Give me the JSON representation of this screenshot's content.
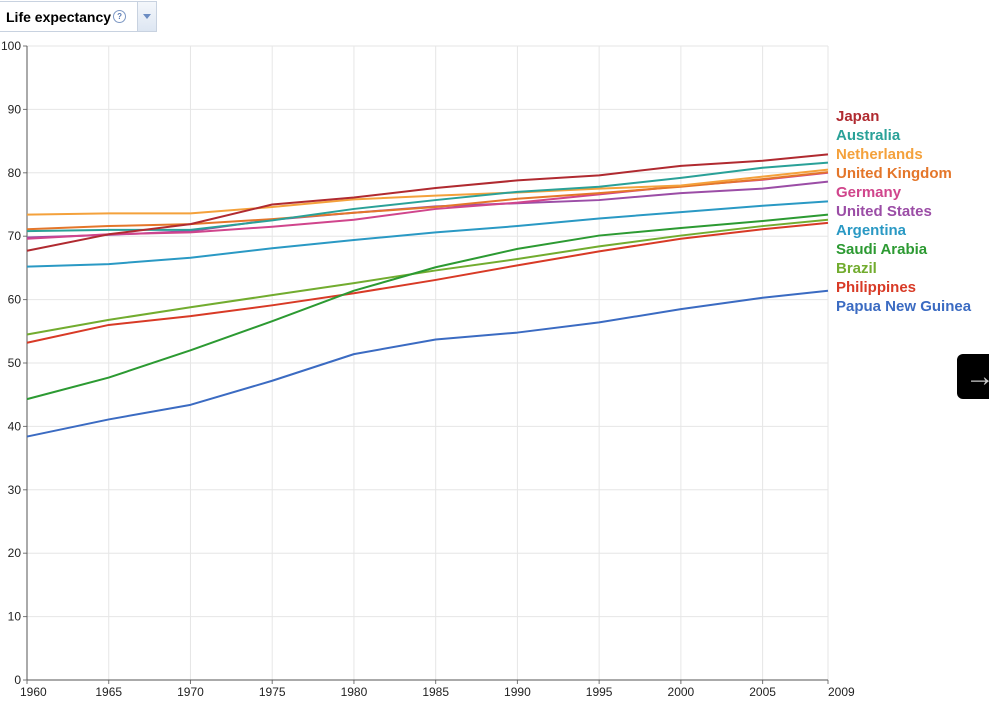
{
  "metric": {
    "title": "Life expectancy",
    "help_glyph": "?"
  },
  "next_icon_glyph": "→",
  "chart_data": {
    "type": "line",
    "title": "Life expectancy",
    "xlim": [
      1960,
      2009
    ],
    "ylim": [
      0,
      100
    ],
    "x_ticks": [
      1960,
      1965,
      1970,
      1975,
      1980,
      1985,
      1990,
      1995,
      2000,
      2005,
      2009
    ],
    "y_ticks": [
      0,
      10,
      20,
      30,
      40,
      50,
      60,
      70,
      80,
      90,
      100
    ],
    "grid": true,
    "legend_placement": "right",
    "x": [
      1960,
      1965,
      1970,
      1975,
      1980,
      1985,
      1990,
      1995,
      2000,
      2005,
      2009
    ],
    "series": [
      {
        "name": "Japan",
        "color": "#b02a30",
        "values": [
          67.7,
          70.3,
          71.9,
          75.0,
          76.1,
          77.6,
          78.8,
          79.6,
          81.1,
          81.9,
          82.9
        ]
      },
      {
        "name": "Australia",
        "color": "#2aa198",
        "values": [
          70.8,
          71.0,
          71.0,
          72.5,
          74.3,
          75.7,
          77.0,
          77.8,
          79.2,
          80.8,
          81.6
        ]
      },
      {
        "name": "Netherlands",
        "color": "#f4a13b",
        "values": [
          73.4,
          73.6,
          73.6,
          74.6,
          75.8,
          76.4,
          76.9,
          77.5,
          78.0,
          79.4,
          80.5
        ]
      },
      {
        "name": "United Kingdom",
        "color": "#e4762a",
        "values": [
          71.1,
          71.6,
          71.9,
          72.7,
          73.7,
          74.6,
          75.9,
          76.8,
          77.8,
          79.0,
          80.1
        ]
      },
      {
        "name": "Germany",
        "color": "#d0458c",
        "values": [
          69.6,
          70.3,
          70.6,
          71.5,
          72.6,
          74.3,
          75.3,
          76.6,
          77.9,
          78.9,
          80.0
        ]
      },
      {
        "name": "United States",
        "color": "#9b4da6",
        "values": [
          69.8,
          70.2,
          70.8,
          72.6,
          73.7,
          74.7,
          75.2,
          75.7,
          76.8,
          77.5,
          78.6
        ]
      },
      {
        "name": "Argentina",
        "color": "#2a99c4",
        "values": [
          65.2,
          65.6,
          66.6,
          68.1,
          69.4,
          70.6,
          71.6,
          72.8,
          73.8,
          74.8,
          75.5
        ]
      },
      {
        "name": "Saudi Arabia",
        "color": "#2c9a32",
        "values": [
          44.3,
          47.7,
          52.0,
          56.6,
          61.4,
          65.1,
          68.0,
          70.1,
          71.3,
          72.4,
          73.4
        ]
      },
      {
        "name": "Brazil",
        "color": "#72ac2f",
        "values": [
          54.5,
          56.8,
          58.8,
          60.7,
          62.6,
          64.6,
          66.4,
          68.4,
          70.1,
          71.6,
          72.6
        ]
      },
      {
        "name": "Philippines",
        "color": "#d83a26",
        "values": [
          53.2,
          56.0,
          57.4,
          59.1,
          61.0,
          63.1,
          65.4,
          67.6,
          69.6,
          71.1,
          72.1
        ]
      },
      {
        "name": "Papua New Guinea",
        "color": "#3b6bc2",
        "values": [
          38.4,
          41.1,
          43.4,
          47.2,
          51.4,
          53.7,
          54.8,
          56.4,
          58.5,
          60.3,
          61.4
        ]
      }
    ]
  }
}
